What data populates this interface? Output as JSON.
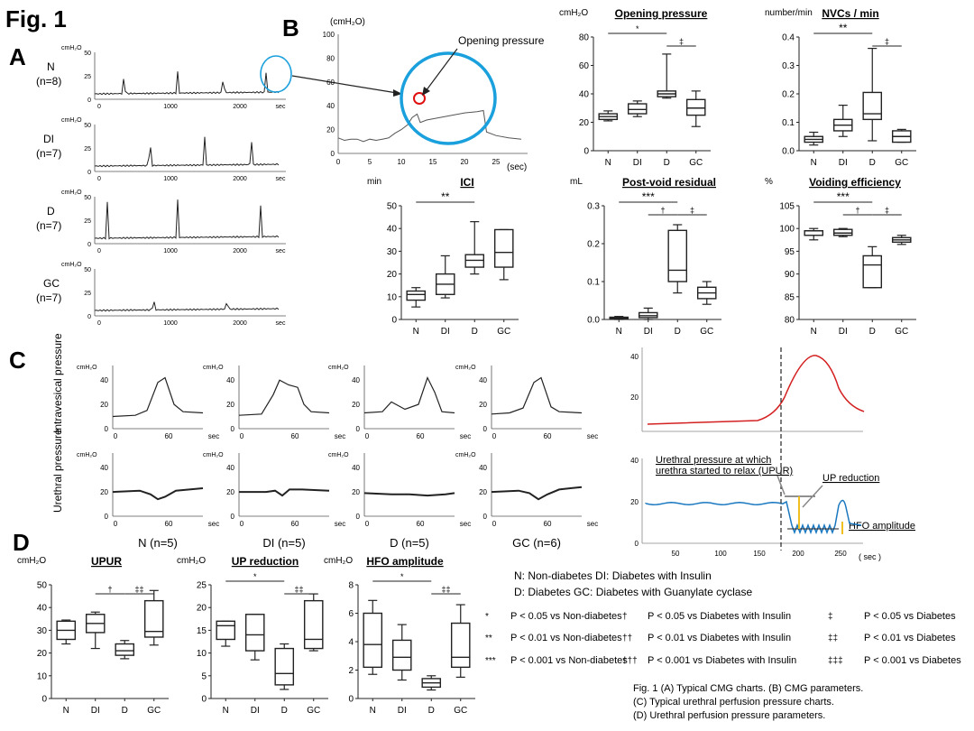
{
  "figure": {
    "title": "Fig. 1",
    "panel_a": "A",
    "panel_b": "B",
    "panel_c": "C",
    "panel_d": "D"
  },
  "traces_a": [
    {
      "label": "N",
      "n": "(n=8)",
      "unit": "cmH₂O",
      "yticks": [
        "0",
        "25",
        "50"
      ],
      "xticks": [
        "0",
        "1000",
        "2000",
        "sec"
      ]
    },
    {
      "label": "DI",
      "n": "(n=7)",
      "unit": "cmH₂O",
      "yticks": [
        "0",
        "25",
        "50"
      ],
      "xticks": [
        "0",
        "1000",
        "2000",
        "sec"
      ]
    },
    {
      "label": "D",
      "n": "(n=7)",
      "unit": "cmH₂O",
      "yticks": [
        "0",
        "25",
        "50"
      ],
      "xticks": [
        "0",
        "1000",
        "2000",
        "sec"
      ]
    },
    {
      "label": "GC",
      "n": "(n=7)",
      "unit": "cmH₂O",
      "yticks": [
        "0",
        "25",
        "50"
      ],
      "xticks": [
        "0",
        "1000",
        "2000",
        "sec"
      ]
    }
  ],
  "panel_b_trace": {
    "unit": "(cmH₂O)",
    "annotation": "Opening pressure",
    "yticks": [
      "0",
      "20",
      "40",
      "60",
      "80",
      "100"
    ],
    "xticks": [
      "0",
      "5",
      "10",
      "15",
      "20",
      "25"
    ],
    "xunit": "(sec)"
  },
  "panel_c": {
    "row1_label": "Intravesical pressure",
    "row2_label": "Urethral pressure",
    "unit": "cmH₂O",
    "yticks": [
      "0",
      "20",
      "40"
    ],
    "xticks": [
      "0",
      "60",
      "sec"
    ],
    "groups": [
      "N (n=5)",
      "DI (n=5)",
      "D (n=5)",
      "GC (n=6)"
    ],
    "schematic": {
      "top_yticks": [
        "20",
        "40"
      ],
      "bottom_yticks": [
        "0",
        "20",
        "40"
      ],
      "xticks": [
        "50",
        "100",
        "150",
        "200",
        "250"
      ],
      "xunit": "( sec )",
      "upur_label": "Urethral pressure at which urethra started to relax (UPUR)",
      "up_reduction_label": "UP reduction",
      "hfo_label": "HFO amplitude"
    }
  },
  "chart_data": [
    {
      "type": "box",
      "title": "Opening pressure",
      "ylabel": "cmH₂O",
      "categories": [
        "N",
        "DI",
        "D",
        "GC"
      ],
      "ylim": [
        0,
        80
      ],
      "yticks": [
        0,
        20,
        40,
        60,
        80
      ],
      "boxes": [
        [
          21,
          22,
          24,
          26,
          28
        ],
        [
          24,
          26,
          29,
          33,
          35
        ],
        [
          37,
          38,
          40,
          42,
          68
        ],
        [
          17,
          25,
          30,
          36,
          42
        ]
      ],
      "sig": [
        {
          "from": "N",
          "to": "D",
          "label": "*"
        },
        {
          "from": "D",
          "to": "GC",
          "label": "‡"
        }
      ]
    },
    {
      "type": "box",
      "title": "NVCs / min",
      "ylabel": "number/min",
      "categories": [
        "N",
        "DI",
        "D",
        "GC"
      ],
      "ylim": [
        0,
        0.4
      ],
      "yticks": [
        0.0,
        0.1,
        0.2,
        0.3,
        0.4
      ],
      "boxes": [
        [
          0.02,
          0.03,
          0.04,
          0.05,
          0.065
        ],
        [
          0.05,
          0.07,
          0.09,
          0.11,
          0.16
        ],
        [
          0.035,
          0.11,
          0.13,
          0.205,
          0.36
        ],
        [
          0.03,
          0.03,
          0.05,
          0.07,
          0.075
        ]
      ],
      "sig": [
        {
          "from": "N",
          "to": "D",
          "label": "**"
        },
        {
          "from": "D",
          "to": "GC",
          "label": "‡"
        }
      ]
    },
    {
      "type": "box",
      "title": "ICI",
      "ylabel": "min",
      "categories": [
        "N",
        "DI",
        "D",
        "GC"
      ],
      "ylim": [
        0,
        50
      ],
      "yticks": [
        0,
        10,
        20,
        30,
        40,
        50
      ],
      "boxes": [
        [
          5.5,
          8.5,
          11,
          12.5,
          14
        ],
        [
          9.5,
          11,
          15.5,
          20,
          28
        ],
        [
          20,
          23,
          26,
          28.5,
          43
        ],
        [
          17.5,
          23,
          29.5,
          39.5,
          39.5
        ]
      ],
      "sig": [
        {
          "from": "N",
          "to": "D",
          "label": "**"
        }
      ]
    },
    {
      "type": "box",
      "title": "Post-void residual",
      "ylabel": "mL",
      "categories": [
        "N",
        "DI",
        "D",
        "GC"
      ],
      "ylim": [
        0,
        0.3
      ],
      "yticks": [
        0.0,
        0.1,
        0.2,
        0.3
      ],
      "boxes": [
        [
          0,
          0.002,
          0.004,
          0.006,
          0.008
        ],
        [
          0,
          0.005,
          0.01,
          0.018,
          0.03
        ],
        [
          0.07,
          0.1,
          0.13,
          0.235,
          0.25
        ],
        [
          0.04,
          0.055,
          0.07,
          0.085,
          0.1
        ]
      ],
      "sig": [
        {
          "from": "N",
          "to": "D",
          "label": "***"
        },
        {
          "from": "DI",
          "to": "D",
          "label": "†"
        },
        {
          "from": "D",
          "to": "GC",
          "label": "‡"
        }
      ]
    },
    {
      "type": "box",
      "title": "Voiding efficiency",
      "ylabel": "%",
      "categories": [
        "N",
        "DI",
        "D",
        "GC"
      ],
      "ylim": [
        80,
        105
      ],
      "yticks": [
        80,
        85,
        90,
        95,
        100,
        105
      ],
      "boxes": [
        [
          97.5,
          98.5,
          99.5,
          99.5,
          100
        ],
        [
          98.2,
          98.5,
          99,
          99.8,
          100
        ],
        [
          87,
          87,
          92,
          94,
          96
        ],
        [
          96.5,
          97,
          97.5,
          98,
          98.5
        ]
      ],
      "sig": [
        {
          "from": "N",
          "to": "D",
          "label": "***"
        },
        {
          "from": "DI",
          "to": "D",
          "label": "†"
        },
        {
          "from": "D",
          "to": "GC",
          "label": "‡"
        }
      ]
    },
    {
      "type": "box",
      "title": "UPUR",
      "ylabel": "cmH₂O",
      "categories": [
        "N",
        "DI",
        "D",
        "GC"
      ],
      "ylim": [
        0,
        50
      ],
      "yticks": [
        0,
        10,
        20,
        30,
        40,
        50
      ],
      "boxes": [
        [
          24,
          26,
          30,
          34,
          34.5
        ],
        [
          22,
          29,
          33,
          37,
          38
        ],
        [
          17.5,
          19,
          21,
          24,
          25.5
        ],
        [
          23.5,
          27,
          29.5,
          43,
          47.5
        ]
      ],
      "sig": [
        {
          "from": "DI",
          "to": "D",
          "label": "†"
        },
        {
          "from": "D",
          "to": "GC",
          "label": "‡‡"
        }
      ]
    },
    {
      "type": "box",
      "title": "UP reduction",
      "ylabel": "cmH₂O",
      "categories": [
        "N",
        "DI",
        "D",
        "GC"
      ],
      "ylim": [
        0,
        25
      ],
      "yticks": [
        0,
        5,
        10,
        15,
        20,
        25
      ],
      "boxes": [
        [
          11.5,
          13,
          16,
          17,
          17
        ],
        [
          8.5,
          10.5,
          14,
          18.5,
          18.5
        ],
        [
          2,
          3,
          5.5,
          11,
          12
        ],
        [
          10.5,
          11,
          13,
          21.5,
          23
        ]
      ],
      "sig": [
        {
          "from": "N",
          "to": "D",
          "label": "*"
        },
        {
          "from": "D",
          "to": "GC",
          "label": "‡‡"
        }
      ]
    },
    {
      "type": "box",
      "title": "HFO amplitude",
      "ylabel": "cmH₂O",
      "categories": [
        "N",
        "DI",
        "D",
        "GC"
      ],
      "ylim": [
        0,
        8
      ],
      "yticks": [
        0,
        2,
        4,
        6,
        8
      ],
      "boxes": [
        [
          1.7,
          2.2,
          3.8,
          6,
          6.9
        ],
        [
          1.3,
          2,
          2.9,
          4.1,
          5.2
        ],
        [
          0.6,
          0.8,
          1.1,
          1.4,
          1.6
        ],
        [
          1.5,
          2.2,
          2.9,
          5.3,
          6.6
        ]
      ],
      "sig": [
        {
          "from": "N",
          "to": "D",
          "label": "*"
        },
        {
          "from": "D",
          "to": "GC",
          "label": "‡‡"
        }
      ]
    }
  ],
  "legend": {
    "line1": "N: Non-diabetes  DI: Diabetes with Insulin",
    "line2": "D: Diabetes  GC: Diabetes with Guanylate cyclase",
    "rows": [
      [
        "*",
        "P < 0.05 vs Non-diabetes",
        "†",
        "P < 0.05 vs Diabetes with Insulin",
        "‡",
        "P < 0.05 vs Diabetes"
      ],
      [
        "**",
        "P < 0.01 vs Non-diabetes",
        "††",
        "P < 0.01 vs Diabetes with Insulin",
        "‡‡",
        "P < 0.01 vs Diabetes"
      ],
      [
        "***",
        "P < 0.001 vs Non-diabetes",
        "†††",
        "P < 0.001 vs Diabetes with Insulin",
        "‡‡‡",
        "P < 0.001 vs Diabetes"
      ]
    ],
    "caption": [
      "Fig. 1 (A) Typical CMG charts. (B) CMG parameters.",
      "(C) Typical urethral perfusion pressure charts.",
      "(D) Urethral perfusion pressure parameters."
    ]
  },
  "colors": {
    "circle": "#1aa0dc",
    "red_marker": "#e01010",
    "red_trace": "#d42020",
    "blue_trace": "#1a78c0",
    "yellow_bar": "#f0c020"
  }
}
